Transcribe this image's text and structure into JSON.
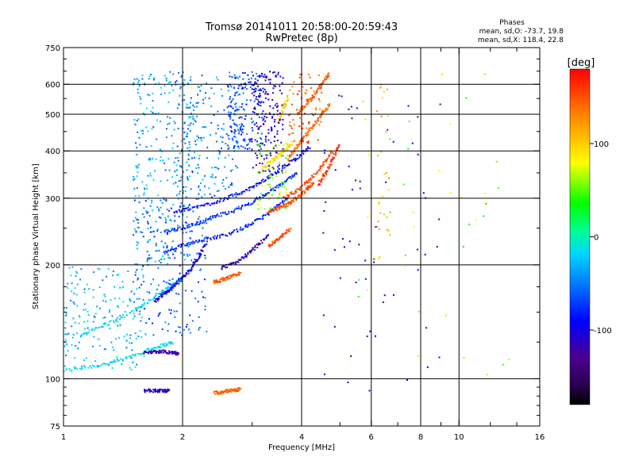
{
  "chart_data": {
    "type": "scatter",
    "title": "Tromsø 20141011 20:58:00-20:59:43",
    "subtitle": "RwPretec (8p)",
    "xlabel": "Frequency [MHz]",
    "ylabel": "Stationary phase Virtual Height [km]",
    "x_scale": "log",
    "y_scale": "log",
    "xlim": [
      1,
      16
    ],
    "ylim": [
      75,
      750
    ],
    "x_ticks": [
      1,
      2,
      4,
      6,
      8,
      10,
      16
    ],
    "x_tick_labels": [
      "1",
      "2",
      "4",
      "6",
      "8",
      "10",
      "16"
    ],
    "x_grid": [
      2,
      4,
      6,
      8,
      10
    ],
    "y_ticks": [
      75,
      100,
      200,
      300,
      400,
      500,
      600,
      750
    ],
    "y_tick_labels": [
      "75",
      "100",
      "200",
      "300",
      "400",
      "500",
      "600",
      "750"
    ],
    "y_grid": [
      100,
      200,
      300,
      400,
      500,
      600
    ],
    "grid": true,
    "phases_info": {
      "title": "Phases",
      "line_o": "mean, sd,O: -73.7, 19.8",
      "line_x": "mean, sd,X: 118.4, 22.8"
    },
    "colorbar": {
      "label": "[deg]",
      "range": [
        -180,
        180
      ],
      "ticks": [
        100,
        0,
        -100
      ],
      "tick_labels": [
        "100",
        "0",
        "-100"
      ],
      "colormap": "rainbow"
    },
    "traces": [
      {
        "x": [
          1.0,
          1.2,
          1.4,
          1.6,
          1.75,
          1.9
        ],
        "y": [
          105,
          108,
          112,
          118,
          122,
          125
        ],
        "phase": -15
      },
      {
        "x": [
          1.6,
          1.7,
          1.8,
          1.9,
          1.95
        ],
        "y": [
          117,
          118,
          118,
          117,
          116
        ],
        "phase": -120
      },
      {
        "x": [
          1.1,
          1.3,
          1.5,
          1.7,
          1.85,
          2.0
        ],
        "y": [
          130,
          140,
          150,
          165,
          175,
          185
        ],
        "phase": -20
      },
      {
        "x": [
          1.7,
          1.8,
          1.9,
          2.0,
          2.1,
          2.2,
          2.3
        ],
        "y": [
          160,
          168,
          175,
          185,
          195,
          210,
          230
        ],
        "phase": -100
      },
      {
        "x": [
          1.8,
          2.0,
          2.2,
          2.5,
          2.8,
          3.1,
          3.4,
          3.7
        ],
        "y": [
          215,
          225,
          232,
          238,
          248,
          262,
          280,
          300
        ],
        "phase": -80
      },
      {
        "x": [
          1.8,
          2.0,
          2.2,
          2.4,
          2.7,
          3.0,
          3.3,
          3.6,
          3.9
        ],
        "y": [
          245,
          250,
          258,
          268,
          278,
          293,
          310,
          330,
          352
        ],
        "phase": -75
      },
      {
        "x": [
          1.9,
          2.1,
          2.4,
          2.7,
          3.0,
          3.3,
          3.6,
          3.9,
          4.2
        ],
        "y": [
          275,
          282,
          292,
          305,
          320,
          340,
          362,
          385,
          410
        ],
        "phase": -90
      },
      {
        "x": [
          2.5,
          2.7,
          2.9,
          3.1,
          3.3
        ],
        "y": [
          195,
          202,
          212,
          225,
          240
        ],
        "phase": -115
      },
      {
        "x": [
          3.3,
          3.5,
          3.7,
          3.9,
          4.1,
          4.3
        ],
        "y": [
          275,
          282,
          290,
          300,
          315,
          330
        ],
        "phase": 150
      },
      {
        "x": [
          3.6,
          3.9,
          4.2,
          4.5,
          4.8
        ],
        "y": [
          300,
          315,
          335,
          365,
          400
        ],
        "phase": 155
      },
      {
        "x": [
          4.4,
          4.6,
          4.8,
          5.0
        ],
        "y": [
          325,
          350,
          380,
          420
        ],
        "phase": 160
      },
      {
        "x": [
          3.7,
          3.9,
          4.1,
          4.3,
          4.5,
          4.7
        ],
        "y": [
          380,
          410,
          440,
          470,
          500,
          530
        ],
        "phase": 140
      },
      {
        "x": [
          3.9,
          4.1,
          4.3,
          4.5,
          4.7
        ],
        "y": [
          500,
          530,
          560,
          600,
          640
        ],
        "phase": 145
      },
      {
        "x": [
          3.3,
          3.45,
          3.6,
          3.75
        ],
        "y": [
          225,
          232,
          240,
          250
        ],
        "phase": 150
      },
      {
        "x": [
          2.4,
          2.5,
          2.6,
          2.7,
          2.8
        ],
        "y": [
          180,
          182,
          185,
          188,
          190
        ],
        "phase": 145
      },
      {
        "x": [
          2.4,
          2.5,
          2.6,
          2.7,
          2.8
        ],
        "y": [
          92,
          92,
          93,
          93,
          94
        ],
        "phase": 145
      },
      {
        "x": [
          1.6,
          1.7,
          1.8,
          1.85
        ],
        "y": [
          93,
          93,
          93,
          93
        ],
        "phase": -110
      },
      {
        "x": [
          3.2,
          3.4,
          3.6,
          3.8
        ],
        "y": [
          360,
          380,
          400,
          420
        ],
        "phase": 95
      },
      {
        "x": [
          3.5,
          3.6,
          3.7
        ],
        "y": [
          480,
          520,
          560
        ],
        "phase": 100
      }
    ],
    "clouds": [
      {
        "x": [
          1.0,
          1.6
        ],
        "y": [
          105,
          200
        ],
        "n": 180,
        "phase": -30
      },
      {
        "x": [
          1.5,
          2.1
        ],
        "y": [
          200,
          650
        ],
        "n": 260,
        "phase": -35
      },
      {
        "x": [
          1.9,
          2.8
        ],
        "y": [
          300,
          650
        ],
        "n": 220,
        "phase": -45
      },
      {
        "x": [
          2.6,
          3.2
        ],
        "y": [
          400,
          650
        ],
        "n": 160,
        "phase": -70
      },
      {
        "x": [
          3.0,
          3.6
        ],
        "y": [
          350,
          650
        ],
        "n": 170,
        "phase": -110
      },
      {
        "x": [
          1.5,
          2.3
        ],
        "y": [
          130,
          300
        ],
        "n": 180,
        "phase": -60
      },
      {
        "x": [
          3.1,
          3.7
        ],
        "y": [
          280,
          420
        ],
        "n": 70,
        "phase": 60
      },
      {
        "x": [
          3.7,
          4.5
        ],
        "y": [
          420,
          640
        ],
        "n": 70,
        "phase": 150
      },
      {
        "x": [
          4.5,
          9
        ],
        "y": [
          90,
          650
        ],
        "n": 60,
        "phase": -110
      },
      {
        "x": [
          6.2,
          6.7
        ],
        "y": [
          200,
          620
        ],
        "n": 30,
        "phase": 110
      },
      {
        "x": [
          5.5,
          14
        ],
        "y": [
          100,
          650
        ],
        "n": 40,
        "phase": 60
      }
    ]
  }
}
